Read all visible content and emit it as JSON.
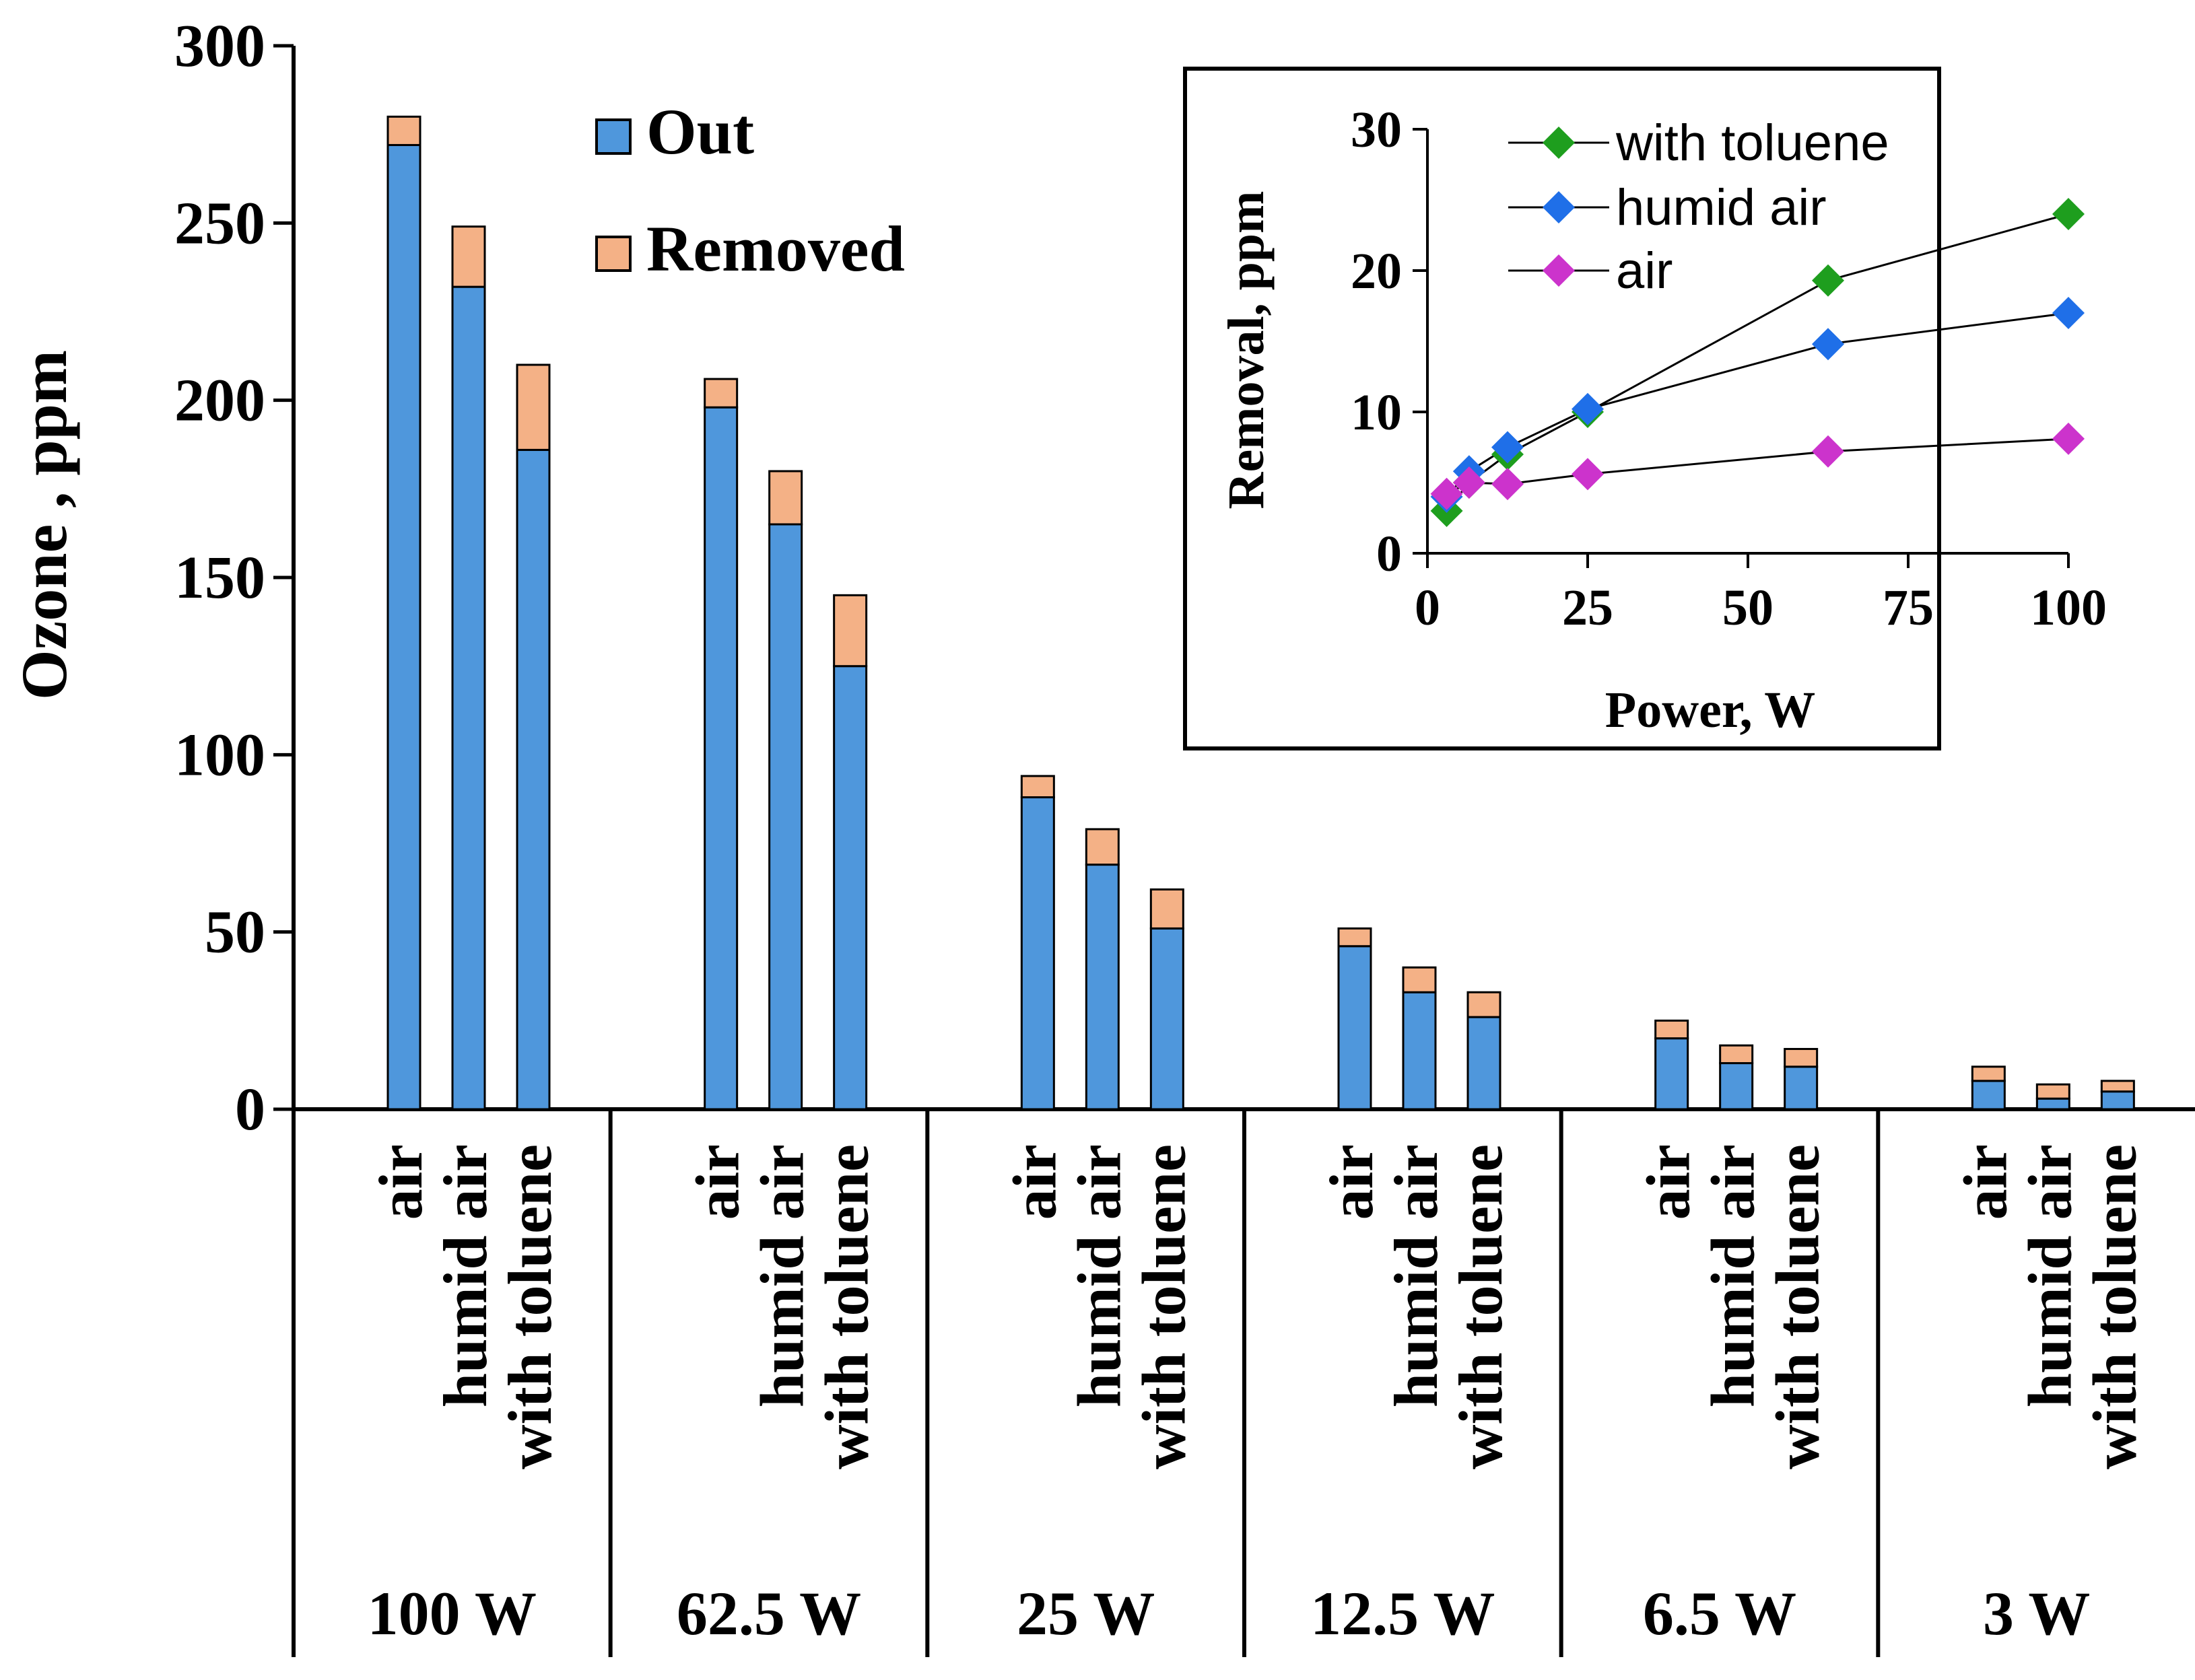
{
  "chart_data": [
    {
      "type": "bar",
      "stacked": true,
      "ylabel": "Ozone , ppm",
      "ylim": [
        0,
        300
      ],
      "yticks": [
        0,
        50,
        100,
        150,
        200,
        250,
        300
      ],
      "legend": {
        "position": "top-center",
        "entries": [
          "Out",
          "Removed"
        ]
      },
      "group_labels": [
        "100 W",
        "62.5 W",
        "25 W",
        "12.5 W",
        "6.5 W",
        "3 W"
      ],
      "category_labels": [
        "air",
        "humid air",
        "with toluene"
      ],
      "colors": {
        "Out": "#4f97dc",
        "Removed": "#f4b186"
      },
      "series": [
        {
          "name": "Out",
          "values": [
            [
              272,
              232,
              186
            ],
            [
              198,
              165,
              125
            ],
            [
              88,
              69,
              51
            ],
            [
              46,
              33,
              26
            ],
            [
              20,
              13,
              12
            ],
            [
              8,
              3,
              5
            ]
          ]
        },
        {
          "name": "Removed",
          "values": [
            [
              8,
              17,
              24
            ],
            [
              8,
              15,
              20
            ],
            [
              6,
              10,
              11
            ],
            [
              5,
              7,
              7
            ],
            [
              5,
              5,
              5
            ],
            [
              4,
              4,
              3
            ]
          ]
        }
      ]
    },
    {
      "type": "line",
      "inset": true,
      "xlabel": "Power, W",
      "ylabel": "Removal, ppm",
      "xlim": [
        0,
        100
      ],
      "ylim": [
        0,
        30
      ],
      "xticks": [
        0,
        25,
        50,
        75,
        100
      ],
      "yticks": [
        0,
        10,
        20,
        30
      ],
      "legend": {
        "position": "top-left"
      },
      "series": [
        {
          "name": "with toluene",
          "color": "#1e9e1e",
          "x": [
            3,
            6.5,
            12.5,
            25,
            62.5,
            100
          ],
          "y": [
            3,
            5,
            7,
            10,
            19.3,
            24
          ]
        },
        {
          "name": "humid air",
          "color": "#1f6fe8",
          "x": [
            3,
            6.5,
            12.5,
            25,
            62.5,
            100
          ],
          "y": [
            4,
            5.8,
            7.5,
            10.2,
            14.8,
            17
          ]
        },
        {
          "name": "air",
          "color": "#cc33cc",
          "x": [
            3,
            6.5,
            12.5,
            25,
            62.5,
            100
          ],
          "y": [
            4.2,
            5,
            4.9,
            5.6,
            7.2,
            8.1
          ]
        }
      ]
    }
  ]
}
